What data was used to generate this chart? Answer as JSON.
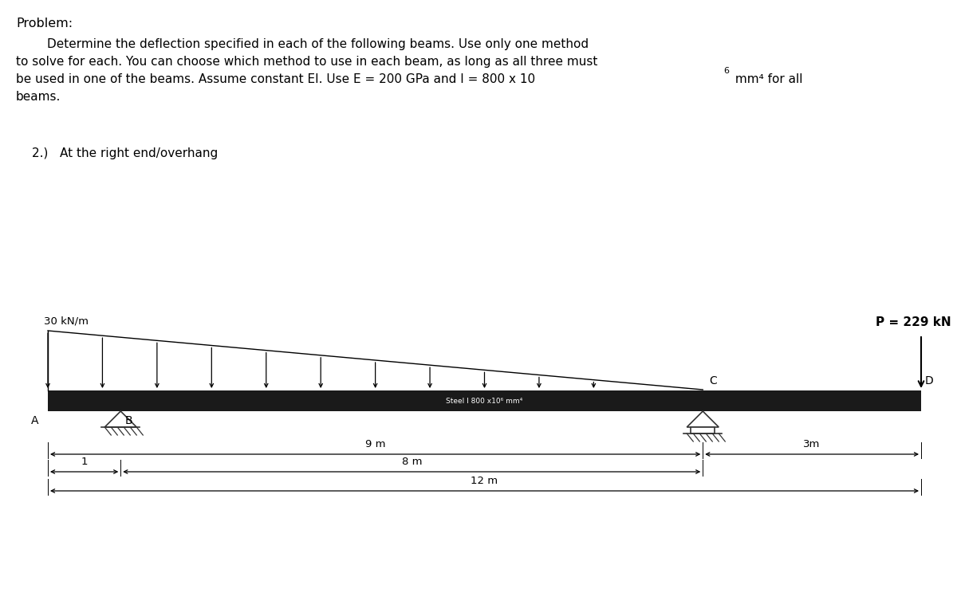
{
  "title_problem": "Problem:",
  "desc1": "        Determine the deflection specified in each of the following beams. Use only one method",
  "desc2": "to solve for each. You can choose which method to use in each beam, as long as all three must",
  "desc3a": "be used in one of the beams. Assume constant EI. Use E = 200 GPa and I = 800 x 10",
  "desc3b": " mm⁴ for all",
  "desc4": "beams.",
  "sub_title": "2.)   At the right end/overhang",
  "load_label": "30 kN/m",
  "point_label": "P = 229 kN",
  "label_A": "A",
  "label_B": "B",
  "label_C": "C",
  "label_D": "D",
  "beam_text": "Steel I 800 x10⁶ mm⁴",
  "dim_9m": "9 m",
  "dim_8m": "8 m",
  "dim_12m": "12 m",
  "dim_3m": "3m",
  "dim_1": "1",
  "bg_color": "#ffffff",
  "beam_color": "#1a1a1a",
  "text_color": "#000000"
}
